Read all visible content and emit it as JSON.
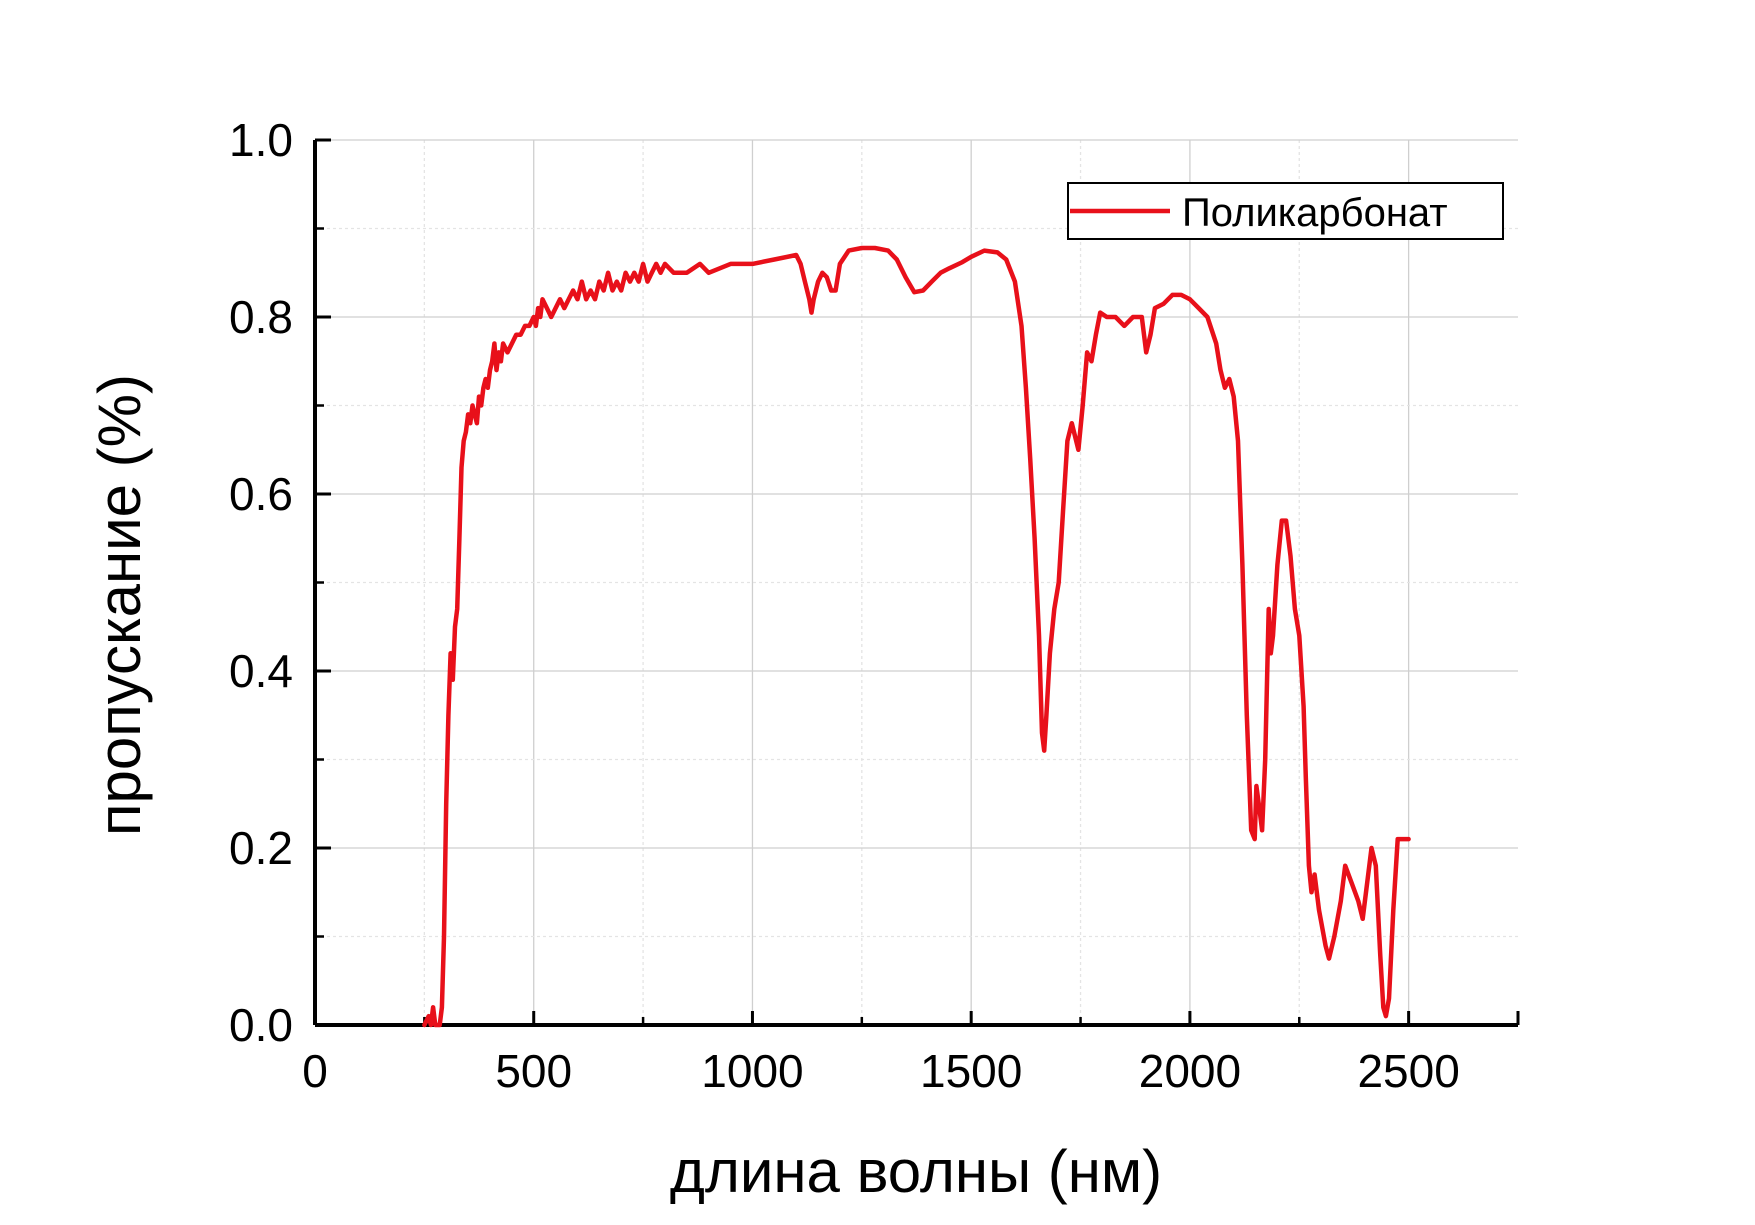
{
  "chart_data": {
    "type": "line",
    "title": "",
    "xlabel": "длина волны (нм)",
    "ylabel": "пропускание (%)",
    "xlim": [
      0,
      2750
    ],
    "ylim": [
      0,
      1.0
    ],
    "x_ticks": [
      0,
      500,
      1000,
      1500,
      2000,
      2500
    ],
    "x_tick_labels": [
      "0",
      "500",
      "1000",
      "1500",
      "2000",
      "2500"
    ],
    "y_ticks": [
      0,
      0.2,
      0.4,
      0.6,
      0.8,
      1.0
    ],
    "y_tick_labels": [
      "0.0",
      "0.2",
      "0.4",
      "0.6",
      "0.8",
      "1.0"
    ],
    "grid": true,
    "legend_position": "top-right",
    "series_color": "#e8101a",
    "series": [
      {
        "name": "Поликарбонат",
        "points": [
          [
            250,
            0.0
          ],
          [
            260,
            0.01
          ],
          [
            265,
            0.0
          ],
          [
            270,
            0.02
          ],
          [
            275,
            0.0
          ],
          [
            285,
            0.0
          ],
          [
            290,
            0.02
          ],
          [
            295,
            0.1
          ],
          [
            300,
            0.25
          ],
          [
            305,
            0.35
          ],
          [
            310,
            0.42
          ],
          [
            315,
            0.39
          ],
          [
            320,
            0.45
          ],
          [
            325,
            0.47
          ],
          [
            330,
            0.55
          ],
          [
            335,
            0.63
          ],
          [
            340,
            0.66
          ],
          [
            345,
            0.67
          ],
          [
            350,
            0.69
          ],
          [
            355,
            0.68
          ],
          [
            360,
            0.7
          ],
          [
            365,
            0.69
          ],
          [
            370,
            0.68
          ],
          [
            375,
            0.71
          ],
          [
            380,
            0.7
          ],
          [
            385,
            0.72
          ],
          [
            390,
            0.73
          ],
          [
            395,
            0.72
          ],
          [
            400,
            0.74
          ],
          [
            405,
            0.75
          ],
          [
            410,
            0.77
          ],
          [
            415,
            0.74
          ],
          [
            420,
            0.76
          ],
          [
            425,
            0.75
          ],
          [
            430,
            0.77
          ],
          [
            440,
            0.76
          ],
          [
            450,
            0.77
          ],
          [
            460,
            0.78
          ],
          [
            470,
            0.78
          ],
          [
            480,
            0.79
          ],
          [
            490,
            0.79
          ],
          [
            500,
            0.8
          ],
          [
            505,
            0.79
          ],
          [
            510,
            0.81
          ],
          [
            515,
            0.8
          ],
          [
            520,
            0.82
          ],
          [
            530,
            0.81
          ],
          [
            540,
            0.8
          ],
          [
            550,
            0.81
          ],
          [
            560,
            0.82
          ],
          [
            570,
            0.81
          ],
          [
            580,
            0.82
          ],
          [
            590,
            0.83
          ],
          [
            600,
            0.82
          ],
          [
            610,
            0.84
          ],
          [
            620,
            0.82
          ],
          [
            630,
            0.83
          ],
          [
            640,
            0.82
          ],
          [
            650,
            0.84
          ],
          [
            660,
            0.83
          ],
          [
            670,
            0.85
          ],
          [
            680,
            0.83
          ],
          [
            690,
            0.84
          ],
          [
            700,
            0.83
          ],
          [
            710,
            0.85
          ],
          [
            720,
            0.84
          ],
          [
            730,
            0.85
          ],
          [
            740,
            0.84
          ],
          [
            750,
            0.86
          ],
          [
            760,
            0.84
          ],
          [
            770,
            0.85
          ],
          [
            780,
            0.86
          ],
          [
            790,
            0.85
          ],
          [
            800,
            0.86
          ],
          [
            820,
            0.85
          ],
          [
            850,
            0.85
          ],
          [
            880,
            0.86
          ],
          [
            900,
            0.85
          ],
          [
            950,
            0.86
          ],
          [
            1000,
            0.86
          ],
          [
            1050,
            0.865
          ],
          [
            1100,
            0.87
          ],
          [
            1110,
            0.86
          ],
          [
            1120,
            0.84
          ],
          [
            1130,
            0.82
          ],
          [
            1135,
            0.805
          ],
          [
            1140,
            0.82
          ],
          [
            1150,
            0.84
          ],
          [
            1160,
            0.85
          ],
          [
            1170,
            0.845
          ],
          [
            1180,
            0.83
          ],
          [
            1190,
            0.83
          ],
          [
            1200,
            0.86
          ],
          [
            1220,
            0.875
          ],
          [
            1250,
            0.878
          ],
          [
            1280,
            0.878
          ],
          [
            1310,
            0.875
          ],
          [
            1330,
            0.865
          ],
          [
            1350,
            0.845
          ],
          [
            1370,
            0.828
          ],
          [
            1390,
            0.83
          ],
          [
            1410,
            0.84
          ],
          [
            1430,
            0.85
          ],
          [
            1450,
            0.855
          ],
          [
            1480,
            0.862
          ],
          [
            1500,
            0.868
          ],
          [
            1530,
            0.875
          ],
          [
            1560,
            0.873
          ],
          [
            1580,
            0.865
          ],
          [
            1600,
            0.84
          ],
          [
            1615,
            0.79
          ],
          [
            1625,
            0.72
          ],
          [
            1635,
            0.64
          ],
          [
            1645,
            0.55
          ],
          [
            1655,
            0.44
          ],
          [
            1662,
            0.33
          ],
          [
            1667,
            0.31
          ],
          [
            1672,
            0.35
          ],
          [
            1680,
            0.42
          ],
          [
            1690,
            0.47
          ],
          [
            1700,
            0.5
          ],
          [
            1710,
            0.58
          ],
          [
            1720,
            0.66
          ],
          [
            1730,
            0.68
          ],
          [
            1740,
            0.66
          ],
          [
            1745,
            0.65
          ],
          [
            1755,
            0.7
          ],
          [
            1765,
            0.76
          ],
          [
            1775,
            0.75
          ],
          [
            1785,
            0.78
          ],
          [
            1795,
            0.805
          ],
          [
            1810,
            0.8
          ],
          [
            1830,
            0.8
          ],
          [
            1850,
            0.79
          ],
          [
            1870,
            0.8
          ],
          [
            1890,
            0.8
          ],
          [
            1900,
            0.76
          ],
          [
            1910,
            0.78
          ],
          [
            1920,
            0.81
          ],
          [
            1940,
            0.815
          ],
          [
            1960,
            0.825
          ],
          [
            1980,
            0.825
          ],
          [
            2000,
            0.82
          ],
          [
            2020,
            0.81
          ],
          [
            2040,
            0.8
          ],
          [
            2060,
            0.77
          ],
          [
            2070,
            0.74
          ],
          [
            2080,
            0.72
          ],
          [
            2090,
            0.73
          ],
          [
            2100,
            0.71
          ],
          [
            2110,
            0.66
          ],
          [
            2120,
            0.52
          ],
          [
            2130,
            0.35
          ],
          [
            2140,
            0.22
          ],
          [
            2148,
            0.21
          ],
          [
            2152,
            0.27
          ],
          [
            2160,
            0.24
          ],
          [
            2165,
            0.22
          ],
          [
            2172,
            0.3
          ],
          [
            2180,
            0.47
          ],
          [
            2185,
            0.42
          ],
          [
            2190,
            0.44
          ],
          [
            2200,
            0.52
          ],
          [
            2210,
            0.57
          ],
          [
            2220,
            0.57
          ],
          [
            2230,
            0.53
          ],
          [
            2240,
            0.47
          ],
          [
            2250,
            0.44
          ],
          [
            2260,
            0.36
          ],
          [
            2265,
            0.28
          ],
          [
            2272,
            0.18
          ],
          [
            2278,
            0.15
          ],
          [
            2285,
            0.17
          ],
          [
            2295,
            0.13
          ],
          [
            2310,
            0.09
          ],
          [
            2318,
            0.075
          ],
          [
            2330,
            0.1
          ],
          [
            2345,
            0.14
          ],
          [
            2355,
            0.18
          ],
          [
            2370,
            0.16
          ],
          [
            2385,
            0.14
          ],
          [
            2395,
            0.12
          ],
          [
            2405,
            0.16
          ],
          [
            2415,
            0.2
          ],
          [
            2425,
            0.18
          ],
          [
            2435,
            0.08
          ],
          [
            2442,
            0.02
          ],
          [
            2448,
            0.01
          ],
          [
            2455,
            0.03
          ],
          [
            2465,
            0.13
          ],
          [
            2475,
            0.21
          ],
          [
            2485,
            0.21
          ],
          [
            2500,
            0.21
          ]
        ]
      }
    ]
  }
}
